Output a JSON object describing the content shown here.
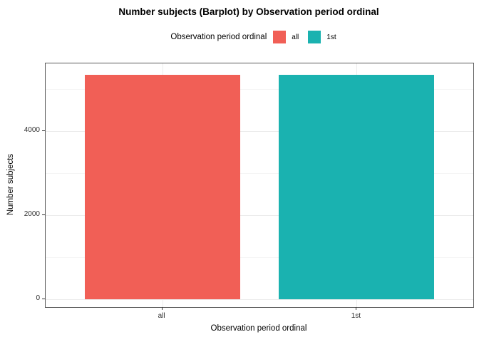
{
  "figure": {
    "title": "Number subjects (Barplot) by Observation period ordinal"
  },
  "legend": {
    "title": "Observation period ordinal",
    "entries": [
      {
        "label": "all",
        "color": "#F15F56"
      },
      {
        "label": "1st",
        "color": "#1AB2B0"
      }
    ]
  },
  "chart_data": {
    "type": "bar",
    "title": "Number subjects (Barplot) by Observation period ordinal",
    "categories": [
      "all",
      "1st"
    ],
    "values": [
      5340,
      5340
    ],
    "series_colors": [
      "#F15F56",
      "#1AB2B0"
    ],
    "xlabel": "Observation period ordinal",
    "ylabel": "Number subjects",
    "y_ticks": [
      0,
      2000,
      4000
    ],
    "y_minor_ticks": [
      1000,
      3000,
      5000
    ],
    "ylim": [
      0,
      5340
    ],
    "ylim_draw": [
      -190,
      5610
    ],
    "legend_position": "top",
    "legend_title": "Observation period ordinal",
    "grid": true,
    "panel_border": true,
    "colors": {
      "panel_border": "#595959",
      "grid_major": "#ebebeb",
      "grid_minor": "#f5f5f5",
      "tick": "#333333"
    }
  }
}
